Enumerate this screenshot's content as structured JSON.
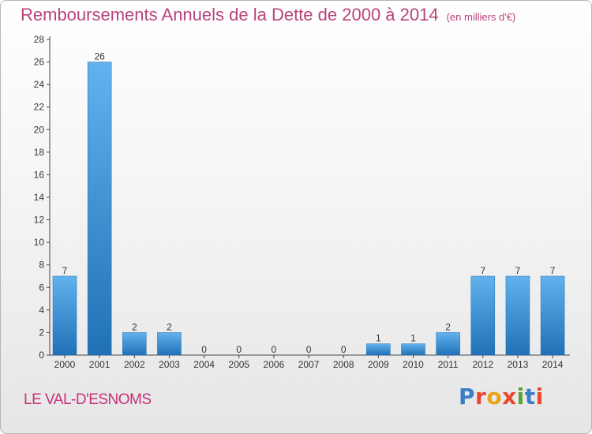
{
  "title": "Remboursements Annuels de la Dette de 2000 à 2014",
  "subtitle": "(en milliers d'€)",
  "commune": "LE VAL-D'ESNOMS",
  "logo": {
    "text": "Proxiti",
    "colors": [
      "#3a7fc4",
      "#e8472b",
      "#e8a317",
      "#e8472b",
      "#5aa432",
      "#3a7fc4",
      "#e8472b"
    ]
  },
  "colors": {
    "bar": "#3a8fd8",
    "bar_light": "#62b2ef",
    "bar_dark": "#2071b6",
    "title": "#b8437b",
    "commune": "#c7317a",
    "axis": "#444444",
    "grid": "#c0c0c0"
  },
  "chart_data": {
    "type": "bar",
    "categories": [
      "2000",
      "2001",
      "2002",
      "2003",
      "2004",
      "2005",
      "2006",
      "2007",
      "2008",
      "2009",
      "2010",
      "2011",
      "2012",
      "2013",
      "2014"
    ],
    "values": [
      7,
      26,
      2,
      2,
      0,
      0,
      0,
      0,
      0,
      1,
      1,
      2,
      7,
      7,
      7
    ],
    "data_labels": [
      "7",
      "26",
      "2",
      "2",
      "0",
      "0",
      "0",
      "0",
      "0",
      "1",
      "1",
      "2",
      "7",
      "7",
      "7"
    ],
    "ylim": [
      0,
      28
    ],
    "yticks": [
      0,
      2,
      4,
      6,
      8,
      10,
      12,
      14,
      16,
      18,
      20,
      22,
      24,
      26,
      28
    ],
    "title": "Remboursements Annuels de la Dette de 2000 à 2014",
    "xlabel": "",
    "ylabel": "",
    "grid": false
  }
}
